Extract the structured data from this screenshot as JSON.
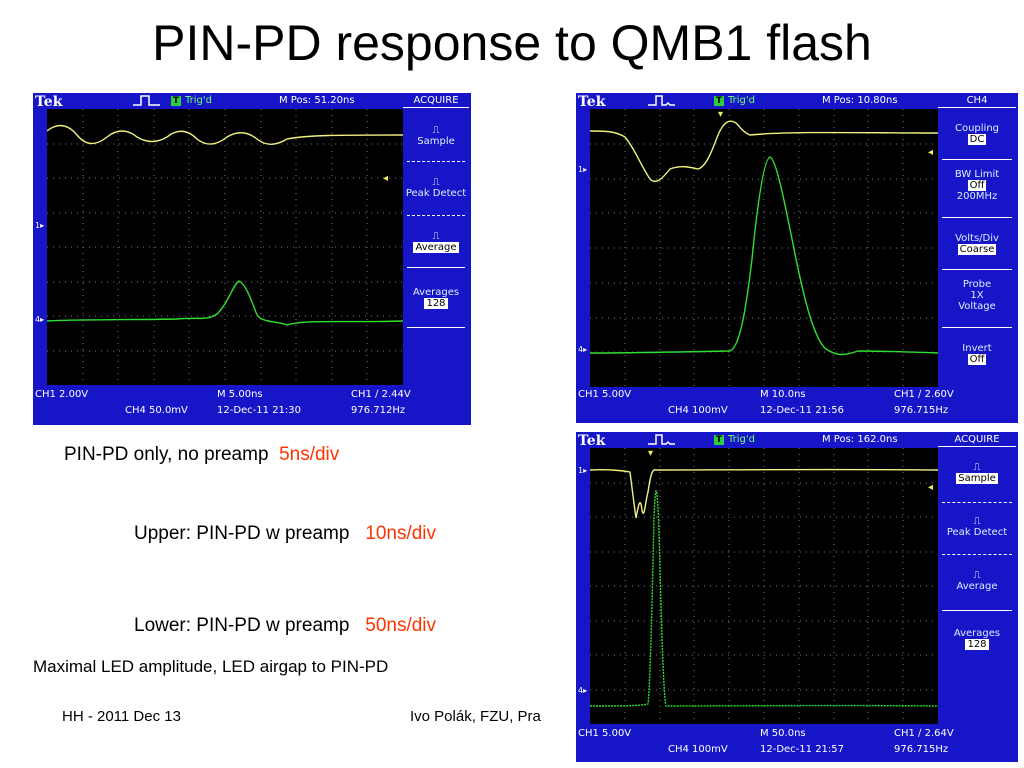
{
  "slide": {
    "title": "PIN-PD response to QMB1 flash",
    "caption1": {
      "text": "PIN-PD only, no preamp",
      "scale": "5ns/div"
    },
    "caption2": {
      "text": "Upper: PIN-PD w preamp",
      "scale": "10ns/div"
    },
    "caption3": {
      "text": "Lower: PIN-PD w preamp",
      "scale": "50ns/div"
    },
    "note": "Maximal LED amplitude, LED airgap to PIN-PD",
    "footer_left": "HH - 2011  Dec 13",
    "footer_mid": "Ivo Polák, FZU, Pra"
  },
  "colors": {
    "scope_bg": "#1616c8",
    "trace_ch1": "#f0f080",
    "trace_ch4": "#30e030",
    "accent_red": "#ff3300"
  },
  "scopes": [
    {
      "brand": "Tek",
      "trig": "T",
      "trig_label": "Trig'd",
      "mpos": "M Pos: 51.20ns",
      "menu_title": "ACQUIRE",
      "menu": {
        "sample": "Sample",
        "peak": "Peak Detect",
        "average": "Average",
        "averages_label": "Averages",
        "averages_value": "128"
      },
      "ch1_scale": "CH1  2.00V",
      "timebase": "M 5.00ns",
      "trigger_level": "CH1 ∕ 2.44V",
      "ch4_scale": "CH4  50.0mV",
      "datetime": "12-Dec-11 21:30",
      "freq": "976.712Hz",
      "markers": {
        "ch1": "1▸",
        "ch4": "4▸"
      }
    },
    {
      "brand": "Tek",
      "trig": "T",
      "trig_label": "Trig'd",
      "mpos": "M Pos: 10.80ns",
      "menu_title": "CH4",
      "menu": {
        "coupling": "Coupling",
        "coupling_val": "DC",
        "bw": "BW Limit",
        "bw_val": "Off",
        "bw_note": "200MHz",
        "volts": "Volts/Div",
        "volts_val": "Coarse",
        "probe": "Probe",
        "probe_x": "1X",
        "probe_type": "Voltage",
        "invert": "Invert",
        "invert_val": "Off"
      },
      "ch1_scale": "CH1  5.00V",
      "timebase": "M 10.0ns",
      "trigger_level": "CH1 ∕ 2.60V",
      "ch4_scale": "CH4  100mV",
      "datetime": "12-Dec-11 21:56",
      "freq": "976.715Hz",
      "markers": {
        "ch1": "1▸",
        "ch4": "4▸"
      }
    },
    {
      "brand": "Tek",
      "trig": "T",
      "trig_label": "Trig'd",
      "mpos": "M Pos: 162.0ns",
      "menu_title": "ACQUIRE",
      "menu": {
        "sample": "Sample",
        "peak": "Peak Detect",
        "average": "Average",
        "averages_label": "Averages",
        "averages_value": "128"
      },
      "ch1_scale": "CH1  5.00V",
      "timebase": "M 50.0ns",
      "trigger_level": "CH1 ∕ 2.64V",
      "ch4_scale": "CH4  100mV",
      "datetime": "12-Dec-11 21:57",
      "freq": "976.715Hz",
      "markers": {
        "ch1": "1▸",
        "ch4": "4▸"
      }
    }
  ]
}
